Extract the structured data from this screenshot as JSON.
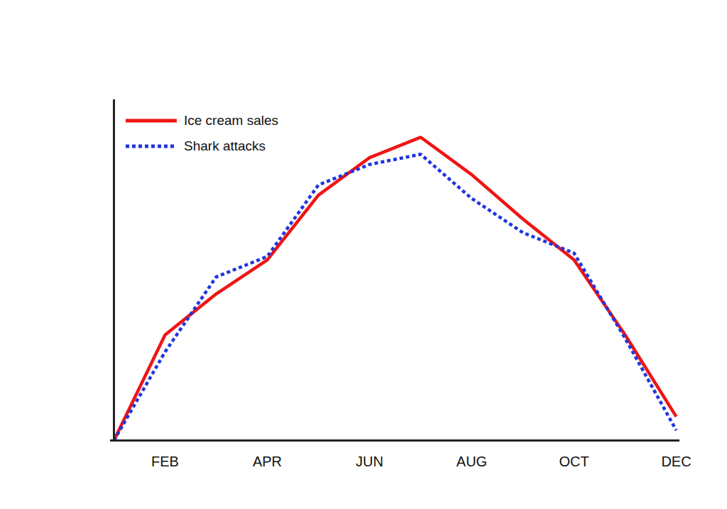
{
  "chart_data": {
    "type": "line",
    "categories": [
      null,
      "FEB",
      null,
      "APR",
      null,
      "JUN",
      null,
      "AUG",
      null,
      "OCT",
      null,
      "DEC"
    ],
    "series": [
      {
        "name": "Ice cream sales",
        "color": "#f01414",
        "line_style": "solid",
        "values": [
          0,
          31,
          43,
          53,
          72,
          83,
          89,
          78,
          65,
          53,
          31,
          7
        ]
      },
      {
        "name": "Shark attacks",
        "color": "#1f35e0",
        "line_style": "dotted",
        "values": [
          0,
          26,
          48,
          54,
          75,
          81,
          84,
          71,
          61,
          55,
          30,
          3
        ]
      }
    ],
    "ylim": [
      0,
      100
    ],
    "yticks": [],
    "tick_labels": "x",
    "legend": "top-left"
  }
}
